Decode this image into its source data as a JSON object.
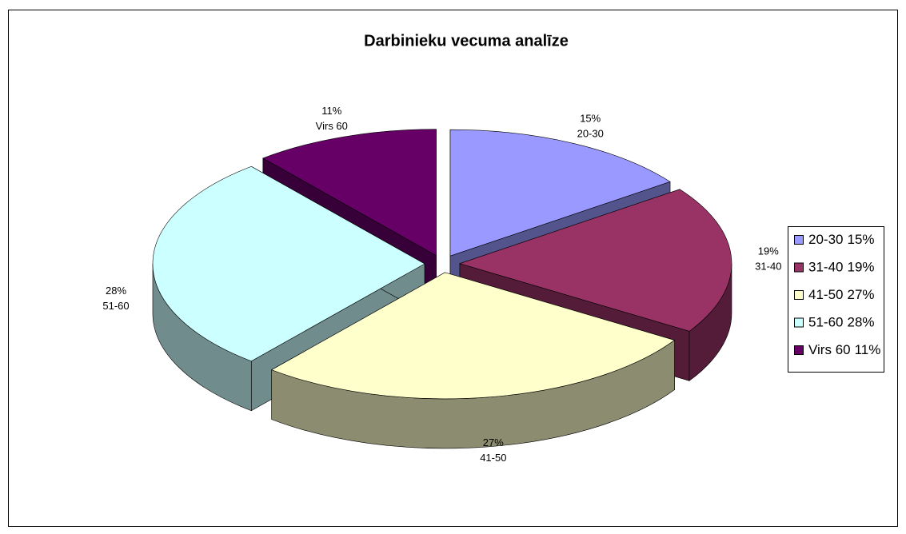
{
  "chart_data": {
    "type": "pie",
    "title": "Darbinieku vecuma analīze",
    "categories": [
      "20-30",
      "31-40",
      "41-50",
      "51-60",
      "Virs 60"
    ],
    "values": [
      15,
      19,
      27,
      28,
      11
    ],
    "value_labels": [
      "15%",
      "19%",
      "27%",
      "28%",
      "11%"
    ],
    "colors": [
      "#9999ff",
      "#993366",
      "#ffffcc",
      "#ccffff",
      "#660066"
    ],
    "legend": "right"
  }
}
